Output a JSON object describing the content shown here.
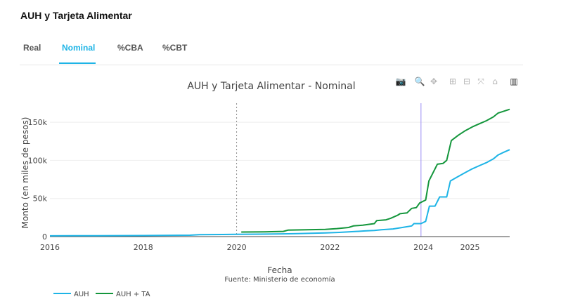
{
  "card": {
    "title": "AUH y Tarjeta Alimentar"
  },
  "tabs": [
    {
      "label": "Real",
      "active": false
    },
    {
      "label": "Nominal",
      "active": true
    },
    {
      "label": "%CBA",
      "active": false
    },
    {
      "label": "%CBT",
      "active": false
    }
  ],
  "modebar": [
    {
      "name": "camera-icon",
      "glyph": "📷"
    },
    {
      "name": "zoom-icon",
      "glyph": "🔍"
    },
    {
      "name": "pan-icon",
      "glyph": "✥"
    },
    {
      "name": "zoom-in-icon",
      "glyph": "⊞"
    },
    {
      "name": "zoom-out-icon",
      "glyph": "⊟"
    },
    {
      "name": "autoscale-icon",
      "glyph": "⤧"
    },
    {
      "name": "reset-axes-icon",
      "glyph": "⌂"
    },
    {
      "name": "plotly-logo-icon",
      "glyph": "▥"
    }
  ],
  "chart_data": {
    "type": "line",
    "title": "AUH y Tarjeta Alimentar - Nominal",
    "xlabel": "Fecha",
    "ylabel": "Monto (en miles de pesos)",
    "source": "Fuente: Ministerio de economía",
    "xlim": [
      2016.0,
      2025.85
    ],
    "ylim": [
      0,
      175
    ],
    "x_ticks": [
      2016,
      2018,
      2020,
      2022,
      2024,
      2025
    ],
    "y_ticks": [
      {
        "value": 0,
        "label": "0"
      },
      {
        "value": 50,
        "label": "50k"
      },
      {
        "value": 100,
        "label": "100k"
      },
      {
        "value": 150,
        "label": "150k"
      }
    ],
    "vlines": [
      {
        "x": 2020.0,
        "style": "dotted",
        "color": "#8c8c8c"
      },
      {
        "x": 2023.95,
        "style": "solid",
        "color": "#9b8cf5"
      }
    ],
    "legend_position": "bottom-left",
    "series": [
      {
        "name": "AUH",
        "color": "#1eb4e6",
        "points": [
          [
            2016.0,
            1.0
          ],
          [
            2016.5,
            1.1
          ],
          [
            2017.0,
            1.2
          ],
          [
            2017.5,
            1.3
          ],
          [
            2018.0,
            1.4
          ],
          [
            2018.5,
            1.6
          ],
          [
            2019.0,
            1.8
          ],
          [
            2019.2,
            2.6
          ],
          [
            2019.7,
            2.8
          ],
          [
            2020.0,
            3.0
          ],
          [
            2020.5,
            3.2
          ],
          [
            2021.0,
            3.6
          ],
          [
            2021.3,
            4.0
          ],
          [
            2021.6,
            4.4
          ],
          [
            2021.9,
            4.9
          ],
          [
            2022.2,
            5.5
          ],
          [
            2022.5,
            6.5
          ],
          [
            2022.75,
            7.5
          ],
          [
            2022.95,
            8.0
          ],
          [
            2023.1,
            9.0
          ],
          [
            2023.35,
            10.0
          ],
          [
            2023.55,
            12.0
          ],
          [
            2023.75,
            14.0
          ],
          [
            2023.8,
            17.0
          ],
          [
            2023.95,
            17.0
          ],
          [
            2024.05,
            20.0
          ],
          [
            2024.13,
            40.0
          ],
          [
            2024.25,
            40.0
          ],
          [
            2024.35,
            52.0
          ],
          [
            2024.5,
            52.0
          ],
          [
            2024.58,
            73.0
          ],
          [
            2024.75,
            79.0
          ],
          [
            2024.9,
            84.0
          ],
          [
            2025.05,
            89.0
          ],
          [
            2025.2,
            93.0
          ],
          [
            2025.35,
            97.0
          ],
          [
            2025.5,
            102.0
          ],
          [
            2025.6,
            107.0
          ],
          [
            2025.7,
            110.0
          ],
          [
            2025.85,
            114.0
          ]
        ]
      },
      {
        "name": "AUH + TA",
        "color": "#14963c",
        "points": [
          [
            2020.1,
            6.0
          ],
          [
            2020.6,
            6.3
          ],
          [
            2021.0,
            6.8
          ],
          [
            2021.1,
            8.5
          ],
          [
            2021.5,
            8.9
          ],
          [
            2021.9,
            9.5
          ],
          [
            2022.15,
            10.5
          ],
          [
            2022.4,
            12.0
          ],
          [
            2022.5,
            14.0
          ],
          [
            2022.7,
            15.0
          ],
          [
            2022.95,
            17.0
          ],
          [
            2023.0,
            21.0
          ],
          [
            2023.2,
            22.0
          ],
          [
            2023.3,
            24.0
          ],
          [
            2023.45,
            28.0
          ],
          [
            2023.5,
            30.0
          ],
          [
            2023.65,
            31.0
          ],
          [
            2023.75,
            37.0
          ],
          [
            2023.85,
            38.0
          ],
          [
            2023.92,
            44.0
          ],
          [
            2024.05,
            48.0
          ],
          [
            2024.12,
            73.0
          ],
          [
            2024.3,
            95.0
          ],
          [
            2024.42,
            96.0
          ],
          [
            2024.5,
            100.0
          ],
          [
            2024.6,
            126.0
          ],
          [
            2024.75,
            133.0
          ],
          [
            2024.9,
            139.0
          ],
          [
            2025.05,
            144.0
          ],
          [
            2025.2,
            148.0
          ],
          [
            2025.35,
            152.0
          ],
          [
            2025.5,
            157.0
          ],
          [
            2025.6,
            162.0
          ],
          [
            2025.7,
            164.0
          ],
          [
            2025.85,
            167.0
          ]
        ]
      }
    ]
  }
}
